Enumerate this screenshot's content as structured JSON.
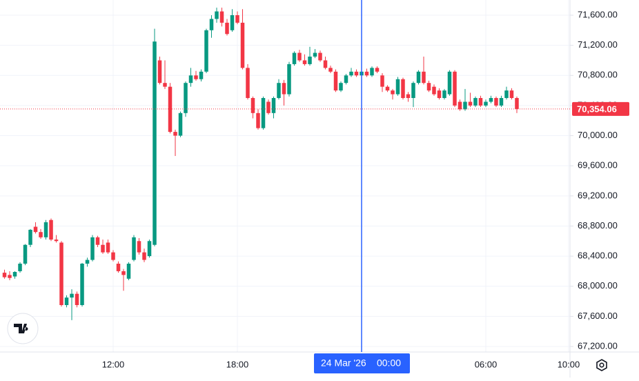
{
  "chart_data": {
    "type": "candlestick",
    "up_color": "#089981",
    "down_color": "#f23645",
    "ylim": [
      67126.7,
      71801.7
    ],
    "yticks": [
      {
        "value": 67200,
        "label": "67,200.00"
      },
      {
        "value": 67600,
        "label": "67,600.00"
      },
      {
        "value": 68000,
        "label": "68,000.00"
      },
      {
        "value": 68400,
        "label": "68,400.00"
      },
      {
        "value": 68800,
        "label": "68,800.00"
      },
      {
        "value": 69200,
        "label": "69,200.00"
      },
      {
        "value": 69600,
        "label": "69,600.00"
      },
      {
        "value": 70000,
        "label": "70,000.00"
      },
      {
        "value": 70400,
        "label": "70,400.00"
      },
      {
        "value": 70800,
        "label": "70,800.00"
      },
      {
        "value": 71200,
        "label": "71,200.00"
      },
      {
        "value": 71600,
        "label": "71,600.00"
      }
    ],
    "xlim": [
      -0.87,
      109.27
    ],
    "xticks": [
      {
        "value": 21,
        "label": "12:00"
      },
      {
        "value": 45,
        "label": "18:00"
      },
      {
        "value": 93,
        "label": "06:00"
      },
      {
        "value": 109,
        "label": "10:00"
      }
    ],
    "grid": true,
    "crosshair": {
      "x": 69,
      "date": "24 Mar '26",
      "time": "00:00",
      "color": "#2962ff"
    },
    "last_price": {
      "value": 70354.06,
      "label": "70,354.06"
    },
    "ohlc": [
      [
        68180,
        68220,
        68100,
        68120
      ],
      [
        68150,
        68200,
        68080,
        68110
      ],
      [
        68130,
        68200,
        68100,
        68190
      ],
      [
        68200,
        68320,
        68180,
        68300
      ],
      [
        68300,
        68560,
        68280,
        68550
      ],
      [
        68550,
        68760,
        68520,
        68750
      ],
      [
        68790,
        68850,
        68700,
        68720
      ],
      [
        68720,
        68760,
        68630,
        68650
      ],
      [
        68650,
        68880,
        68620,
        68850
      ],
      [
        68880,
        68900,
        68600,
        68620
      ],
      [
        68620,
        68680,
        68580,
        68600
      ],
      [
        68580,
        68600,
        67730,
        67750
      ],
      [
        67750,
        67880,
        67720,
        67850
      ],
      [
        67850,
        67960,
        67550,
        67900
      ],
      [
        67900,
        67930,
        67720,
        67750
      ],
      [
        67750,
        68310,
        67730,
        68300
      ],
      [
        68300,
        68380,
        68260,
        68350
      ],
      [
        68350,
        68680,
        68330,
        68650
      ],
      [
        68650,
        68670,
        68520,
        68550
      ],
      [
        68550,
        68620,
        68430,
        68450
      ],
      [
        68580,
        68620,
        68430,
        68450
      ],
      [
        68450,
        68480,
        68330,
        68350
      ],
      [
        68300,
        68330,
        68180,
        68200
      ],
      [
        68200,
        68230,
        67940,
        68150
      ],
      [
        68100,
        68320,
        68080,
        68300
      ],
      [
        68350,
        68680,
        68330,
        68650
      ],
      [
        68600,
        68640,
        68420,
        68450
      ],
      [
        68450,
        68500,
        68320,
        68350
      ],
      [
        68400,
        68620,
        68380,
        68600
      ],
      [
        68550,
        71420,
        68530,
        71250
      ],
      [
        71000,
        71050,
        70680,
        70700
      ],
      [
        70700,
        71000,
        70620,
        70650
      ],
      [
        70650,
        70700,
        70030,
        70050
      ],
      [
        70050,
        70080,
        69730,
        70000
      ],
      [
        70000,
        70320,
        69980,
        70300
      ],
      [
        70300,
        70720,
        70250,
        70700
      ],
      [
        70700,
        70900,
        70650,
        70800
      ],
      [
        70800,
        70860,
        70730,
        70750
      ],
      [
        70750,
        70880,
        70720,
        70850
      ],
      [
        70850,
        71420,
        70830,
        71400
      ],
      [
        71400,
        71600,
        71300,
        71550
      ],
      [
        71550,
        71700,
        71500,
        71650
      ],
      [
        71650,
        71700,
        71450,
        71500
      ],
      [
        71500,
        71550,
        71330,
        71350
      ],
      [
        71400,
        71680,
        71380,
        71600
      ],
      [
        71600,
        71650,
        71480,
        71500
      ],
      [
        71500,
        71680,
        70880,
        70900
      ],
      [
        70900,
        70950,
        70480,
        70500
      ],
      [
        70500,
        70520,
        70230,
        70300
      ],
      [
        70300,
        70350,
        70080,
        70100
      ],
      [
        70100,
        70520,
        70080,
        70500
      ],
      [
        70450,
        70480,
        70280,
        70300
      ],
      [
        70300,
        70520,
        70230,
        70500
      ],
      [
        70500,
        70750,
        70480,
        70700
      ],
      [
        70700,
        70740,
        70400,
        70550
      ],
      [
        70550,
        70980,
        70520,
        70950
      ],
      [
        70950,
        71120,
        70930,
        71100
      ],
      [
        71100,
        71140,
        70980,
        71000
      ],
      [
        71000,
        71080,
        70930,
        70950
      ],
      [
        70950,
        71180,
        70930,
        71050
      ],
      [
        71050,
        71150,
        71030,
        71100
      ],
      [
        71100,
        71130,
        70980,
        71000
      ],
      [
        71000,
        71050,
        70880,
        70900
      ],
      [
        70900,
        70930,
        70830,
        70850
      ],
      [
        70850,
        70880,
        70580,
        70600
      ],
      [
        70600,
        70720,
        70580,
        70700
      ],
      [
        70700,
        70820,
        70680,
        70800
      ],
      [
        70800,
        70900,
        70780,
        70850
      ],
      [
        70850,
        70880,
        70780,
        70800
      ],
      [
        70800,
        70880,
        70770,
        70850
      ],
      [
        70850,
        70890,
        70780,
        70800
      ],
      [
        70800,
        70920,
        70780,
        70900
      ],
      [
        70900,
        70920,
        70830,
        70850
      ],
      [
        70800,
        70830,
        70580,
        70650
      ],
      [
        70650,
        70670,
        70580,
        70600
      ],
      [
        70600,
        70620,
        70480,
        70550
      ],
      [
        70550,
        70780,
        70530,
        70750
      ],
      [
        70750,
        70770,
        70480,
        70500
      ],
      [
        70550,
        70580,
        70450,
        70500
      ],
      [
        70500,
        70720,
        70380,
        70700
      ],
      [
        70700,
        70870,
        70680,
        70850
      ],
      [
        70850,
        71050,
        70680,
        70700
      ],
      [
        70700,
        70730,
        70580,
        70600
      ],
      [
        70650,
        70680,
        70530,
        70550
      ],
      [
        70600,
        70630,
        70480,
        70500
      ],
      [
        70500,
        70620,
        70480,
        70600
      ],
      [
        70550,
        70870,
        70530,
        70850
      ],
      [
        70850,
        70870,
        70380,
        70400
      ],
      [
        70450,
        70480,
        70330,
        70350
      ],
      [
        70350,
        70620,
        70330,
        70450
      ],
      [
        70450,
        70570,
        70380,
        70400
      ],
      [
        70400,
        70520,
        70380,
        70500
      ],
      [
        70500,
        70530,
        70380,
        70400
      ],
      [
        70400,
        70480,
        70380,
        70450
      ],
      [
        70450,
        70530,
        70430,
        70500
      ],
      [
        70500,
        70520,
        70380,
        70400
      ],
      [
        70400,
        70530,
        70380,
        70500
      ],
      [
        70500,
        70650,
        70480,
        70600
      ],
      [
        70600,
        70630,
        70480,
        70500
      ],
      [
        70500,
        70520,
        70300,
        70354.06
      ]
    ]
  }
}
